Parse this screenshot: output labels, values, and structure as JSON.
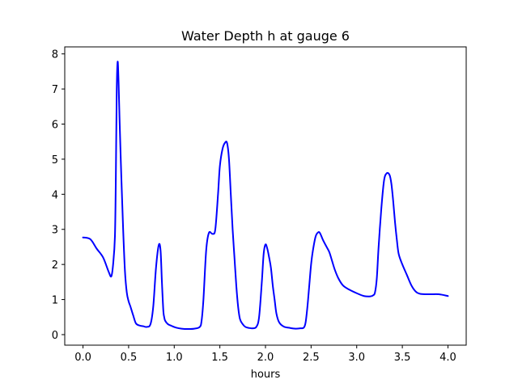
{
  "chart_data": {
    "type": "line",
    "title": "Water Depth h at gauge 6",
    "xlabel": "hours",
    "ylabel": "",
    "xlim": [
      -0.2,
      4.2
    ],
    "ylim": [
      -0.3,
      8.2
    ],
    "xticks": [
      0.0,
      0.5,
      1.0,
      1.5,
      2.0,
      2.5,
      3.0,
      3.5,
      4.0
    ],
    "xtick_labels": [
      "0.0",
      "0.5",
      "1.0",
      "1.5",
      "2.0",
      "2.5",
      "3.0",
      "3.5",
      "4.0"
    ],
    "yticks": [
      0,
      1,
      2,
      3,
      4,
      5,
      6,
      7,
      8
    ],
    "ytick_labels": [
      "0",
      "1",
      "2",
      "3",
      "4",
      "5",
      "6",
      "7",
      "8"
    ],
    "grid": false,
    "line_color": "#0000ff",
    "series": [
      {
        "x": [
          0.0,
          0.08,
          0.15,
          0.22,
          0.28,
          0.31,
          0.33,
          0.35,
          0.36,
          0.37,
          0.38,
          0.39,
          0.4,
          0.42,
          0.44,
          0.46,
          0.48,
          0.5,
          0.52,
          0.55,
          0.58,
          0.62,
          0.66,
          0.7,
          0.74,
          0.77,
          0.8,
          0.83,
          0.85,
          0.865,
          0.88,
          0.89,
          0.9,
          0.93,
          0.97,
          1.02,
          1.08,
          1.15,
          1.22,
          1.28,
          1.3,
          1.32,
          1.35,
          1.38,
          1.42,
          1.45,
          1.48,
          1.5,
          1.53,
          1.56,
          1.58,
          1.6,
          1.62,
          1.64,
          1.66,
          1.68,
          1.7,
          1.72,
          1.75,
          1.78,
          1.82,
          1.86,
          1.9,
          1.93,
          1.96,
          1.98,
          2.0,
          2.02,
          2.04,
          2.06,
          2.08,
          2.1,
          2.12,
          2.15,
          2.2,
          2.27,
          2.33,
          2.38,
          2.42,
          2.44,
          2.46,
          2.48,
          2.5,
          2.52,
          2.55,
          2.58,
          2.6,
          2.63,
          2.67,
          2.7,
          2.73,
          2.76,
          2.8,
          2.85,
          2.92,
          3.0,
          3.08,
          3.15,
          3.18,
          3.2,
          3.22,
          3.24,
          3.27,
          3.3,
          3.33,
          3.36,
          3.38,
          3.4,
          3.42,
          3.44,
          3.46,
          3.5,
          3.55,
          3.6,
          3.65,
          3.7,
          3.8,
          3.9,
          4.0
        ],
        "y": [
          2.77,
          2.72,
          2.45,
          2.2,
          1.8,
          1.66,
          2.0,
          2.8,
          4.5,
          7.0,
          7.78,
          7.2,
          6.2,
          4.5,
          3.0,
          1.8,
          1.2,
          0.95,
          0.8,
          0.55,
          0.32,
          0.26,
          0.24,
          0.22,
          0.3,
          0.8,
          1.9,
          2.55,
          2.4,
          1.5,
          0.7,
          0.5,
          0.4,
          0.3,
          0.25,
          0.2,
          0.17,
          0.16,
          0.17,
          0.22,
          0.4,
          1.0,
          2.4,
          2.9,
          2.87,
          3.0,
          4.0,
          4.8,
          5.3,
          5.48,
          5.45,
          5.0,
          4.0,
          3.0,
          2.2,
          1.4,
          0.8,
          0.45,
          0.3,
          0.22,
          0.19,
          0.18,
          0.22,
          0.5,
          1.5,
          2.3,
          2.57,
          2.45,
          2.2,
          1.9,
          1.4,
          1.0,
          0.6,
          0.35,
          0.23,
          0.19,
          0.17,
          0.18,
          0.2,
          0.35,
          0.8,
          1.4,
          2.0,
          2.4,
          2.8,
          2.92,
          2.88,
          2.7,
          2.5,
          2.35,
          2.1,
          1.85,
          1.6,
          1.4,
          1.28,
          1.18,
          1.1,
          1.09,
          1.12,
          1.2,
          1.6,
          2.5,
          3.6,
          4.4,
          4.6,
          4.55,
          4.3,
          3.8,
          3.2,
          2.7,
          2.3,
          2.0,
          1.7,
          1.4,
          1.22,
          1.16,
          1.15,
          1.15,
          1.1
        ]
      }
    ]
  }
}
